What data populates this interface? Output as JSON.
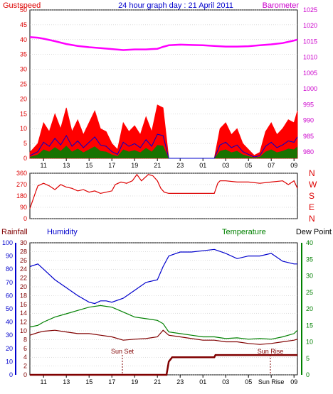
{
  "title": "24 hour graph day : 21 April 2011",
  "colors": {
    "gust": "#ff0000",
    "wind": "#0000cc",
    "windGreen": "#008000",
    "baro": "#ff00ff",
    "dir": "#dd0000",
    "humidity": "#0000cc",
    "temperature": "#008000",
    "dew": "#800000",
    "rain": "#800000",
    "leftAxis": "#dd0000",
    "baroAxis": "#cc00cc",
    "blueAxis": "#0000cc",
    "greenAxis": "#008000"
  },
  "xticks": [
    "11",
    "13",
    "15",
    "17",
    "19",
    "21",
    "23",
    "01",
    "03",
    "05",
    "07",
    "09"
  ],
  "xticks_bottom": [
    "11",
    "13",
    "15",
    "17",
    "19",
    "21",
    "23",
    "01",
    "03",
    "05",
    "Sun Rise",
    "09"
  ],
  "chart_data": [
    {
      "type": "line",
      "panel": "wind",
      "left_axis_label": "Gustspeed",
      "right_axis_label": "Barometer",
      "left_ticks": [
        "0",
        "5",
        "10",
        "15",
        "20",
        "25",
        "30",
        "35",
        "40",
        "45",
        "50"
      ],
      "right_ticks": [
        "980",
        "985",
        "990",
        "995",
        "1000",
        "1005",
        "1010",
        "1015",
        "1020",
        "1025"
      ],
      "ylim_left": [
        0,
        50
      ],
      "ylim_right": [
        978,
        1025
      ],
      "series": [
        {
          "name": "Gustspeed",
          "x": [
            9.8,
            10.5,
            11.0,
            11.5,
            12.0,
            12.5,
            13.0,
            13.5,
            14.0,
            14.5,
            15.0,
            15.5,
            16.0,
            16.5,
            17.0,
            17.5,
            18.0,
            18.5,
            19.0,
            19.5,
            20.0,
            20.5,
            21.0,
            21.5,
            22.0,
            23.0,
            24.0,
            25.0,
            26.0,
            26.5,
            27.0,
            27.5,
            28.0,
            28.5,
            29.0,
            29.5,
            30.0,
            30.5,
            31.0,
            31.5,
            32.0,
            32.5,
            33.0,
            33.3
          ],
          "values": [
            2,
            5,
            12,
            9,
            15,
            10,
            17,
            9,
            13,
            8,
            12,
            16,
            10,
            9,
            5,
            3,
            12,
            9,
            11,
            8,
            14,
            9,
            18,
            17,
            0,
            0,
            0,
            0,
            0,
            10,
            12,
            8,
            10,
            5,
            3,
            1,
            2,
            9,
            12,
            8,
            10,
            13,
            12,
            16
          ]
        },
        {
          "name": "Barometer",
          "x": [
            9.8,
            10.5,
            11.0,
            12.0,
            13.0,
            14.0,
            15.0,
            16.0,
            17.0,
            18.0,
            19.0,
            20.0,
            20.5,
            21.0,
            21.5,
            22.0,
            23.0,
            24.0,
            25.0,
            26.0,
            27.0,
            28.0,
            29.0,
            30.0,
            31.0,
            32.0,
            33.0,
            33.3
          ],
          "values": [
            1016.4,
            1016.2,
            1015.9,
            1015.1,
            1014.2,
            1013.6,
            1013.2,
            1012.9,
            1012.6,
            1012.3,
            1012.5,
            1012.5,
            1012.6,
            1012.7,
            1013.3,
            1013.8,
            1014.0,
            1013.9,
            1013.8,
            1013.6,
            1013.4,
            1013.4,
            1013.5,
            1013.8,
            1014.1,
            1014.5,
            1015.3,
            1015.6
          ]
        }
      ]
    },
    {
      "type": "line",
      "panel": "direction",
      "left_ticks": [
        "0",
        "90",
        "180",
        "270",
        "360"
      ],
      "right_labels": [
        "N",
        "W",
        "S",
        "E",
        "N"
      ],
      "ylim": [
        0,
        360
      ],
      "series": [
        {
          "name": "Direction",
          "x": [
            9.8,
            10.3,
            10.5,
            11.0,
            11.5,
            12.0,
            12.5,
            13.0,
            13.5,
            14.0,
            14.5,
            15.0,
            15.5,
            16.0,
            16.5,
            17.0,
            17.3,
            17.8,
            18.3,
            18.8,
            19.2,
            19.6,
            20.2,
            20.6,
            21.0,
            21.3,
            21.6,
            22.0,
            23.0,
            24.0,
            25.0,
            26.0,
            26.3,
            26.5,
            27.0,
            28.0,
            29.0,
            30.0,
            31.0,
            32.0,
            32.5,
            33.0,
            33.3
          ],
          "values": [
            80,
            210,
            260,
            280,
            260,
            230,
            270,
            250,
            240,
            220,
            230,
            210,
            220,
            200,
            210,
            220,
            270,
            290,
            280,
            300,
            350,
            300,
            350,
            340,
            300,
            240,
            210,
            200,
            200,
            200,
            200,
            200,
            280,
            300,
            300,
            290,
            290,
            280,
            290,
            300,
            270,
            300,
            240
          ]
        }
      ]
    },
    {
      "type": "line",
      "panel": "humidity-temperature",
      "left_label_rain": "Rainfall",
      "left_label_humidity": "Humidity",
      "right_label_temp": "Temperature",
      "right_label_dew": "Dew Point",
      "rain_ticks": [
        "0",
        "2",
        "4",
        "6",
        "8",
        "10",
        "12",
        "14",
        "16",
        "18",
        "20",
        "22",
        "24",
        "26",
        "28",
        "30"
      ],
      "humidity_ticks": [
        "0",
        "10",
        "20",
        "30",
        "40",
        "50",
        "60",
        "70",
        "80",
        "90",
        "100"
      ],
      "temp_ticks": [
        "0",
        "5",
        "10",
        "15",
        "20",
        "25",
        "30",
        "35",
        "40"
      ],
      "ylim_humidity": [
        0,
        100
      ],
      "ylim_temp": [
        0,
        40
      ],
      "ylim_rain": [
        0,
        30
      ],
      "annotations": [
        "Sun Set",
        "Sun Rise"
      ],
      "series": [
        {
          "name": "Humidity",
          "x": [
            9.8,
            10.5,
            11.0,
            12.0,
            13.0,
            14.0,
            15.0,
            15.5,
            16.0,
            16.5,
            17.0,
            18.0,
            19.0,
            20.0,
            21.0,
            21.5,
            22.0,
            23.0,
            24.0,
            25.0,
            26.0,
            27.0,
            28.0,
            29.0,
            30.0,
            31.0,
            32.0,
            33.0,
            33.3
          ],
          "values": [
            82,
            84,
            80,
            72,
            66,
            60,
            55,
            54,
            56,
            56,
            55,
            58,
            64,
            70,
            72,
            82,
            90,
            93,
            93,
            94,
            95,
            92,
            88,
            90,
            90,
            92,
            86,
            84,
            84
          ]
        },
        {
          "name": "Temperature",
          "x": [
            9.8,
            10.5,
            11.0,
            12.0,
            13.0,
            14.0,
            15.0,
            16.0,
            17.0,
            18.0,
            19.0,
            20.0,
            21.0,
            21.5,
            22.0,
            23.0,
            24.0,
            25.0,
            26.0,
            27.0,
            28.0,
            29.0,
            30.0,
            31.0,
            32.0,
            33.0,
            33.3
          ],
          "values": [
            14.5,
            15.0,
            16.0,
            17.5,
            18.5,
            19.5,
            20.5,
            21.0,
            20.5,
            19.0,
            17.5,
            17.0,
            16.5,
            15.5,
            13.0,
            12.5,
            12.0,
            11.5,
            11.5,
            11.0,
            11.2,
            10.8,
            11.0,
            10.8,
            11.5,
            12.5,
            13.5
          ]
        },
        {
          "name": "Dew Point",
          "x": [
            9.8,
            10.5,
            11.0,
            12.0,
            13.0,
            14.0,
            15.0,
            16.0,
            17.0,
            18.0,
            19.0,
            20.0,
            21.0,
            21.5,
            22.0,
            23.0,
            24.0,
            25.0,
            26.0,
            27.0,
            28.0,
            29.0,
            30.0,
            31.0,
            32.0,
            33.0,
            33.3
          ],
          "values": [
            12.0,
            12.8,
            13.2,
            13.5,
            13.0,
            12.5,
            12.5,
            12.0,
            11.5,
            10.5,
            10.8,
            11.0,
            11.5,
            13.5,
            12.0,
            11.5,
            11.0,
            10.5,
            10.5,
            10.0,
            10.0,
            9.5,
            9.2,
            9.5,
            10.0,
            10.5,
            10.8
          ]
        },
        {
          "name": "Rainfall",
          "x": [
            9.8,
            21.8,
            22.0,
            22.3,
            23.0,
            24.0,
            26.0,
            26.1,
            33.0,
            33.3
          ],
          "values": [
            0,
            0,
            3,
            4,
            4,
            4,
            4,
            4.5,
            4.5,
            4.5
          ]
        }
      ]
    }
  ]
}
